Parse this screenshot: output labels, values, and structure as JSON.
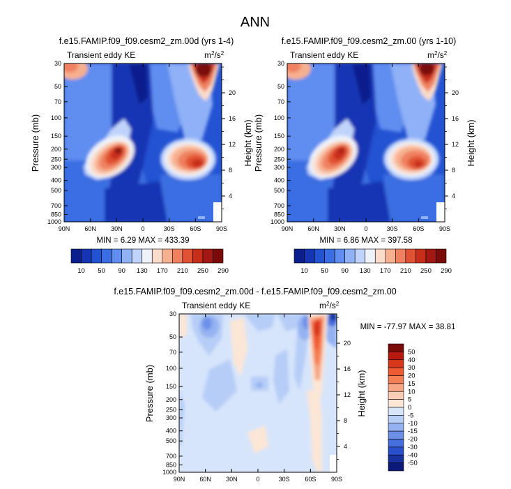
{
  "suptitle": "ANN",
  "chart_data": [
    {
      "type": "contour",
      "title": "f.e15.FAMIP.f09_f09.cesm2_zm.00d (yrs 1-4)",
      "left_label": "Transient eddy KE",
      "units": "m²/s²",
      "stats": "MIN =  6.29  MAX = 433.39",
      "xlabel": "",
      "ylabel": "Pressure (mb)",
      "ylabel_right": "Height (km)",
      "xticks": [
        "90N",
        "60N",
        "30N",
        "0",
        "30S",
        "60S",
        "90S"
      ],
      "yticks": [
        "30",
        "50",
        "70",
        "100",
        "150",
        "200",
        "250",
        "300",
        "400",
        "500",
        "700",
        "850",
        "1000"
      ],
      "yticks_right": [
        "20",
        "16",
        "12",
        "8",
        "4"
      ],
      "colorbar_labels": [
        "10",
        "50",
        "90",
        "130",
        "170",
        "210",
        "250",
        "290"
      ],
      "colorbar_levels": 15
    },
    {
      "type": "contour",
      "title": "f.e15.FAMIP.f09_f09.cesm2_zm.00 (yrs 1-10)",
      "left_label": "Transient eddy KE",
      "units": "m²/s²",
      "stats": "MIN =  6.86  MAX = 397.58",
      "xlabel": "",
      "ylabel": "Pressure (mb)",
      "ylabel_right": "Height (km)",
      "xticks": [
        "90N",
        "60N",
        "30N",
        "0",
        "30S",
        "60S",
        "90S"
      ],
      "yticks": [
        "30",
        "50",
        "70",
        "100",
        "150",
        "200",
        "250",
        "300",
        "400",
        "500",
        "700",
        "850",
        "1000"
      ],
      "yticks_right": [
        "20",
        "16",
        "12",
        "8",
        "4"
      ],
      "colorbar_labels": [
        "10",
        "50",
        "90",
        "130",
        "170",
        "210",
        "250",
        "290"
      ],
      "colorbar_levels": 15
    },
    {
      "type": "contour",
      "title": "f.e15.FAMIP.f09_f09.cesm2_zm.00d - f.e15.FAMIP.f09_f09.cesm2_zm.00",
      "left_label": "Transient eddy KE",
      "units": "m²/s²",
      "stats": "MIN = -77.97  MAX =  38.81",
      "xlabel": "",
      "ylabel": "Pressure (mb)",
      "ylabel_right": "Height (km)",
      "xticks": [
        "90N",
        "60N",
        "30N",
        "0",
        "30S",
        "60S",
        "90S"
      ],
      "yticks": [
        "30",
        "50",
        "70",
        "100",
        "150",
        "200",
        "250",
        "300",
        "400",
        "500",
        "700",
        "850",
        "1000"
      ],
      "yticks_right": [
        "20",
        "16",
        "12",
        "8",
        "4"
      ],
      "colorbar_labels": [
        "50",
        "40",
        "30",
        "20",
        "15",
        "10",
        "5",
        "0",
        "-5",
        "-10",
        "-15",
        "-20",
        "-30",
        "-40",
        "-50"
      ]
    }
  ],
  "colors": {
    "ke_scale": [
      "#0a1e8c",
      "#1536b4",
      "#2352d2",
      "#3a6ee2",
      "#5f8df0",
      "#8fb1f7",
      "#c0d4fb",
      "#eef3fb",
      "#fbdccc",
      "#f6b08f",
      "#ef8160",
      "#e05233",
      "#c72e1a",
      "#a31812",
      "#7a0b08"
    ],
    "diff_scale": [
      "#7a0b08",
      "#b81a10",
      "#d9361e",
      "#ee5a32",
      "#f47f55",
      "#f8a786",
      "#fccdb6",
      "#fce6d6",
      "#d7e5fb",
      "#b6cdf7",
      "#94b2f1",
      "#6c90e8",
      "#466fde",
      "#2a4fcd",
      "#18319e",
      "#0b1a78"
    ]
  }
}
